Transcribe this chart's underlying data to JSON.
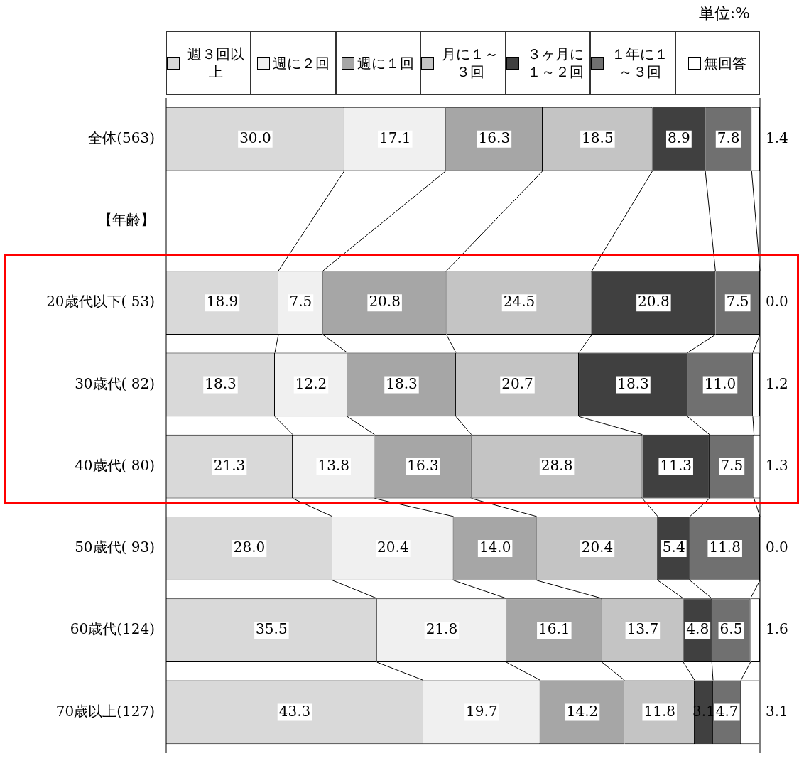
{
  "chart_data": {
    "type": "bar",
    "orientation": "horizontal",
    "stacked": true,
    "categories": [
      "全体(563)",
      "【年齢】",
      "20歳代以下( 53)",
      "30歳代( 82)",
      "40歳代( 80)",
      "50歳代( 93)",
      "60歳代(124)",
      "70歳以上(127)"
    ],
    "xlim": [
      0,
      100
    ],
    "tick_labels": "y",
    "legend": "top",
    "grid": false,
    "annotations": [
      "単位:%"
    ],
    "series": [
      {
        "name": "週３回以上",
        "color": "#d9d9d9",
        "values": [
          30.0,
          null,
          18.9,
          18.3,
          21.3,
          28.0,
          35.5,
          43.3
        ],
        "value_labels": [
          "30.0",
          null,
          "18.9",
          "18.3",
          "21.3",
          "28.0",
          "35.5",
          "43.3"
        ]
      },
      {
        "name": "週に２回",
        "color": "#f0f0f0",
        "values": [
          17.1,
          null,
          7.5,
          12.2,
          13.8,
          20.4,
          21.8,
          19.7
        ],
        "value_labels": [
          "17.1",
          null,
          "7.5",
          "12.2",
          "13.8",
          "20.4",
          "21.8",
          "19.7"
        ]
      },
      {
        "name": "週に１回",
        "color": "#a6a6a6",
        "values": [
          16.3,
          null,
          20.8,
          18.3,
          16.3,
          14.0,
          16.1,
          14.2
        ],
        "value_labels": [
          "16.3",
          null,
          "20.8",
          "18.3",
          "16.3",
          "14.0",
          "16.1",
          "14.2"
        ]
      },
      {
        "name": "月に１～３回",
        "color": "#c4c4c4",
        "values": [
          18.5,
          null,
          24.5,
          20.7,
          28.8,
          20.4,
          13.7,
          11.8
        ],
        "value_labels": [
          "18.5",
          null,
          "24.5",
          "20.7",
          "28.8",
          "20.4",
          "13.7",
          "11.8"
        ]
      },
      {
        "name": "３ヶ月に１～２回",
        "color": "#404040",
        "values": [
          8.9,
          null,
          20.8,
          18.3,
          11.3,
          5.4,
          4.8,
          3.1
        ],
        "value_labels": [
          "8.9",
          null,
          "20.8",
          "18.3",
          "11.3",
          "5.4",
          "4.8",
          "3.1"
        ]
      },
      {
        "name": "１年に１～３回",
        "color": "#707070",
        "values": [
          7.8,
          null,
          7.5,
          11.0,
          7.5,
          11.8,
          6.5,
          4.7
        ],
        "value_labels": [
          "7.8",
          null,
          "7.5",
          "11.0",
          "7.5",
          "11.8",
          "6.5",
          "4.7"
        ]
      },
      {
        "name": "無回答",
        "color": "#ffffff",
        "values": [
          1.4,
          null,
          0.0,
          1.2,
          1.3,
          0.0,
          1.6,
          3.1
        ],
        "value_labels": [
          "1.4",
          null,
          "0.0",
          "1.2",
          "1.3",
          "0.0",
          "1.6",
          "3.1"
        ]
      }
    ]
  }
}
